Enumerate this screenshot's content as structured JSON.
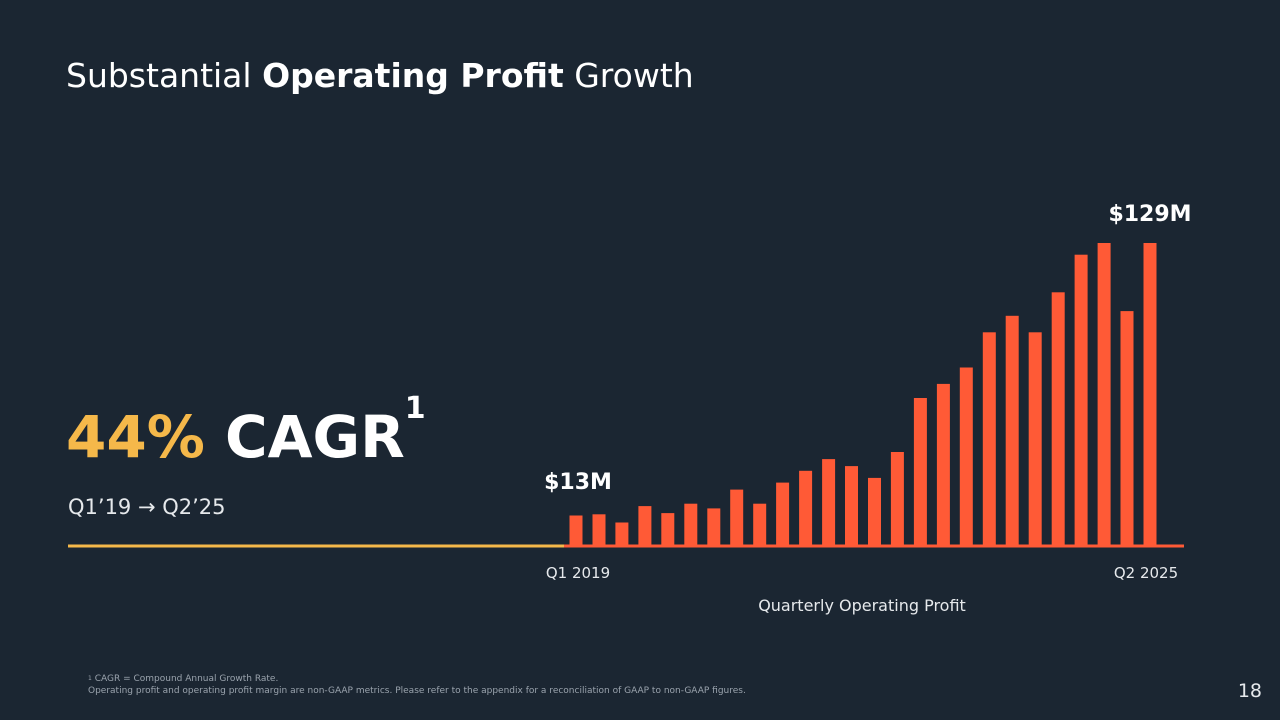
{
  "slide": {
    "title_pre": "Substantial ",
    "title_bold": "Operating Profit",
    "title_post": " Growth",
    "cagr_value": "44%",
    "cagr_label": "CAGR",
    "cagr_sup": "1",
    "cagr_period": "Q1’19 → Q2’25",
    "footnote_sup": "1",
    "footnote_line1": "CAGR = Compound Annual Growth Rate.",
    "footnote_line2": "Operating profit and operating profit margin are non-GAAP metrics. Please refer to the appendix for a reconciliation of GAAP to non-GAAP figures.",
    "page_number": "18"
  },
  "colors": {
    "background": "#1b2632",
    "bar": "#ff5a36",
    "accent_yellow": "#f5b84a"
  },
  "chart_data": {
    "type": "bar",
    "xlabel": "Quarterly Operating Profit",
    "first_tick": "Q1 2019",
    "last_tick": "Q2 2025",
    "first_label": "$13M",
    "last_label": "$129M",
    "unit": "$M",
    "values": [
      13,
      13.5,
      10,
      17,
      14,
      18,
      16,
      24,
      18,
      27,
      32,
      37,
      34,
      29,
      40,
      63,
      69,
      76,
      91,
      98,
      91,
      108,
      124,
      129,
      100,
      129
    ],
    "ylim": [
      0,
      140
    ]
  }
}
